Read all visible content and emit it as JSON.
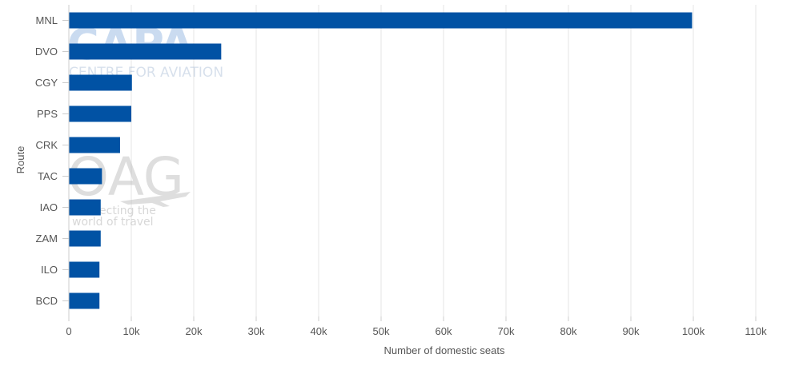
{
  "colors": {
    "bar": "#0152a4",
    "grid": "#e6e6e6",
    "axis": "#cccccc",
    "text": "#555555"
  },
  "watermarks": {
    "capa_logo": "CAPA",
    "capa_subtitle": "CENTRE FOR AVIATION",
    "oag_logo": "OAG",
    "oag_tagline_1": "connecting the",
    "oag_tagline_2": "world of travel"
  },
  "chart_data": {
    "type": "bar",
    "orientation": "horizontal",
    "categories": [
      "MNL",
      "DVO",
      "CGY",
      "PPS",
      "CRK",
      "TAC",
      "IAO",
      "ZAM",
      "ILO",
      "BCD"
    ],
    "series": [
      {
        "values": [
          99800,
          24400,
          10100,
          10000,
          8200,
          5300,
          5100,
          5100,
          4900,
          4900
        ]
      }
    ],
    "xlabel": "Number of domestic seats",
    "ylabel": "Route",
    "xlim": [
      0,
      110000
    ],
    "x_ticks": [
      0,
      10000,
      20000,
      30000,
      40000,
      50000,
      60000,
      70000,
      80000,
      90000,
      100000,
      110000
    ],
    "x_tick_labels": [
      "0",
      "10k",
      "20k",
      "30k",
      "40k",
      "50k",
      "60k",
      "70k",
      "80k",
      "90k",
      "100k",
      "110k"
    ],
    "grid": true,
    "legend": "none"
  }
}
